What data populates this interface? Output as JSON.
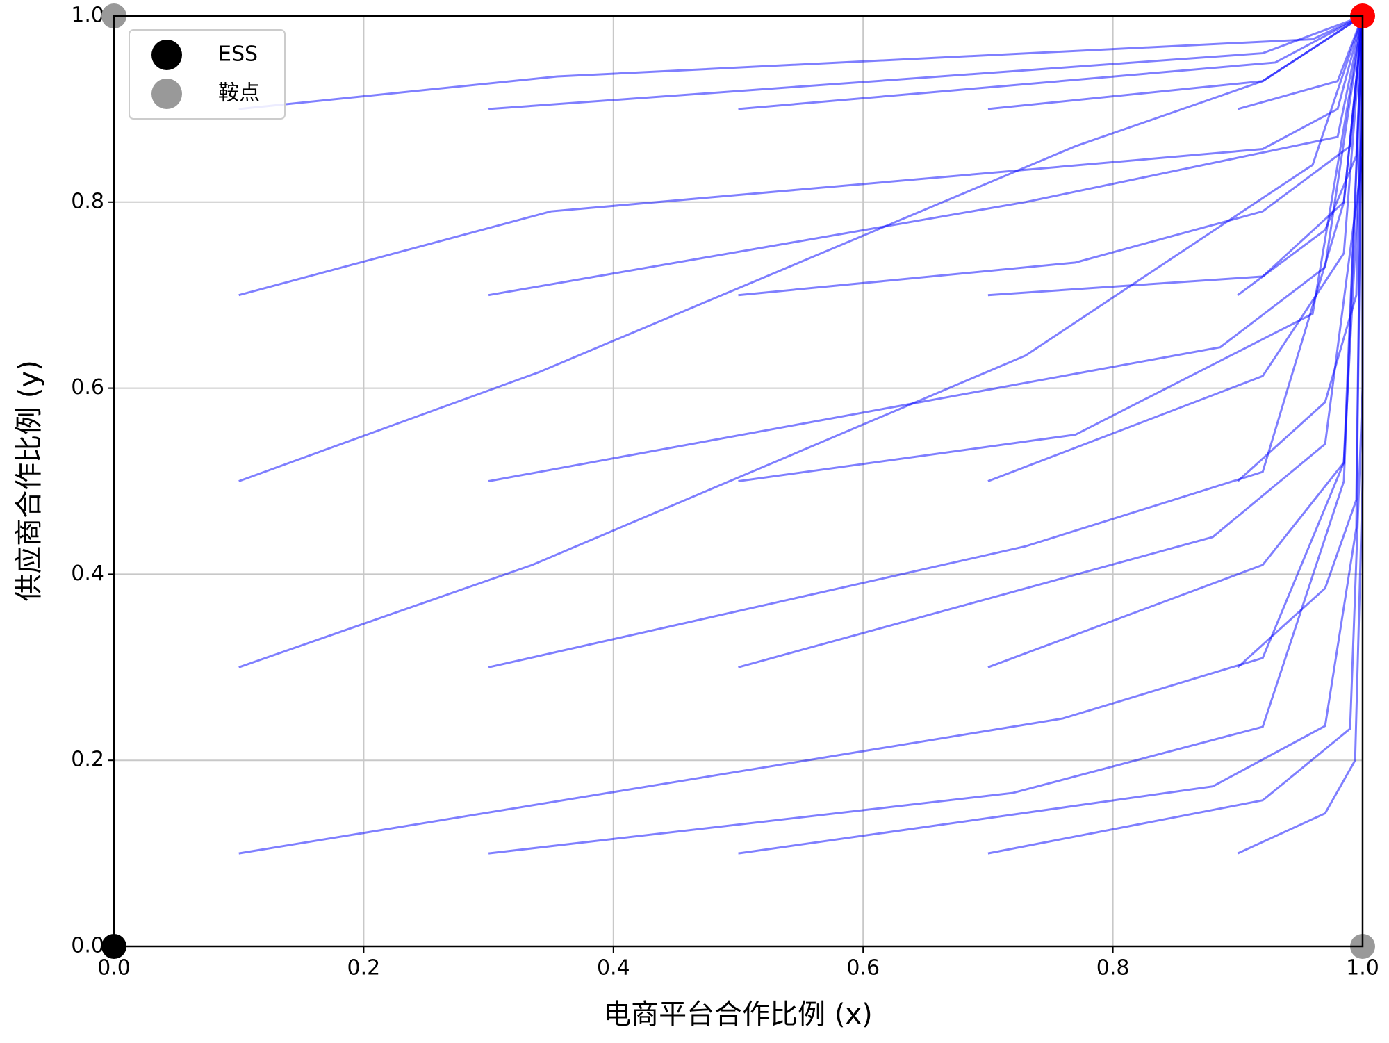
{
  "chart_data": {
    "type": "phase",
    "xlabel": "电商平台合作比例 (x)",
    "ylabel": "供应商合作比例 (y)",
    "xlim": [
      0,
      1
    ],
    "ylim": [
      0,
      1
    ],
    "xticks": [
      {
        "value": 0,
        "label": "0.0"
      },
      0.2,
      0.4,
      0.6,
      0.8,
      {
        "value": 1,
        "label": "1.0"
      }
    ],
    "yticks": [
      {
        "value": 0,
        "label": "0.0"
      },
      0.2,
      0.4,
      0.6,
      0.8,
      {
        "value": 1,
        "label": "1.0"
      }
    ],
    "grid": true,
    "legend": "upper left",
    "line_color": "#0000ff",
    "series": [
      {
        "x": [
          0.1,
          0.76,
          0.92,
          0.985,
          1
        ],
        "y": [
          0.1,
          0.245,
          0.31,
          0.52,
          1
        ]
      },
      {
        "x": [
          0.3,
          0.72,
          0.92,
          0.985,
          1
        ],
        "y": [
          0.1,
          0.165,
          0.236,
          0.5,
          1
        ]
      },
      {
        "x": [
          0.5,
          0.88,
          0.97,
          0.995,
          1
        ],
        "y": [
          0.1,
          0.172,
          0.237,
          0.45,
          1
        ]
      },
      {
        "x": [
          0.7,
          0.92,
          0.99,
          1,
          1
        ],
        "y": [
          0.1,
          0.157,
          0.234,
          0.6,
          1
        ]
      },
      {
        "x": [
          0.9,
          0.97,
          0.994,
          1,
          1
        ],
        "y": [
          0.1,
          0.143,
          0.2,
          0.5,
          1
        ]
      },
      {
        "x": [
          0.1,
          0.335,
          0.73,
          0.96,
          1
        ],
        "y": [
          0.3,
          0.41,
          0.635,
          0.84,
          1
        ]
      },
      {
        "x": [
          0.3,
          0.73,
          0.92,
          0.985,
          1
        ],
        "y": [
          0.3,
          0.43,
          0.51,
          0.8,
          1
        ]
      },
      {
        "x": [
          0.5,
          0.88,
          0.97,
          1,
          1
        ],
        "y": [
          0.3,
          0.44,
          0.54,
          0.85,
          1
        ]
      },
      {
        "x": [
          0.7,
          0.92,
          0.985,
          1,
          1
        ],
        "y": [
          0.3,
          0.41,
          0.52,
          0.9,
          1
        ]
      },
      {
        "x": [
          0.9,
          0.97,
          0.995,
          1
        ],
        "y": [
          0.3,
          0.385,
          0.48,
          1
        ]
      },
      {
        "x": [
          0.1,
          0.34,
          0.77,
          0.92,
          1
        ],
        "y": [
          0.5,
          0.617,
          0.86,
          0.93,
          1
        ]
      },
      {
        "x": [
          0.3,
          0.886,
          0.97,
          1
        ],
        "y": [
          0.5,
          0.644,
          0.73,
          1
        ]
      },
      {
        "x": [
          0.5,
          0.77,
          0.96,
          1
        ],
        "y": [
          0.5,
          0.55,
          0.68,
          1
        ]
      },
      {
        "x": [
          0.7,
          0.92,
          0.985,
          1
        ],
        "y": [
          0.5,
          0.613,
          0.745,
          1
        ]
      },
      {
        "x": [
          0.9,
          0.97,
          0.995,
          1
        ],
        "y": [
          0.5,
          0.585,
          0.7,
          1
        ]
      },
      {
        "x": [
          0.1,
          0.35,
          0.92,
          0.98,
          1
        ],
        "y": [
          0.7,
          0.79,
          0.857,
          0.9,
          1
        ]
      },
      {
        "x": [
          0.3,
          0.73,
          0.98,
          1
        ],
        "y": [
          0.7,
          0.8,
          0.87,
          1
        ]
      },
      {
        "x": [
          0.5,
          0.77,
          0.92,
          0.99,
          1
        ],
        "y": [
          0.7,
          0.735,
          0.79,
          0.86,
          1
        ]
      },
      {
        "x": [
          0.7,
          0.92,
          0.985,
          1
        ],
        "y": [
          0.7,
          0.72,
          0.8,
          1
        ]
      },
      {
        "x": [
          0.9,
          0.97,
          0.995,
          1
        ],
        "y": [
          0.7,
          0.77,
          0.85,
          1
        ]
      },
      {
        "x": [
          0.1,
          0.355,
          0.96,
          1
        ],
        "y": [
          0.9,
          0.935,
          0.975,
          1
        ]
      },
      {
        "x": [
          0.3,
          0.92,
          1
        ],
        "y": [
          0.9,
          0.96,
          1
        ]
      },
      {
        "x": [
          0.5,
          0.93,
          1
        ],
        "y": [
          0.9,
          0.95,
          1
        ]
      },
      {
        "x": [
          0.7,
          0.92,
          1
        ],
        "y": [
          0.9,
          0.93,
          1
        ]
      },
      {
        "x": [
          0.9,
          0.98,
          1
        ],
        "y": [
          0.9,
          0.93,
          1
        ]
      }
    ],
    "points": [
      {
        "name": "ESS",
        "color": "#000000",
        "x": [
          0
        ],
        "y": [
          0
        ]
      },
      {
        "name": "鞍点",
        "color": "#999999",
        "x": [
          0,
          1
        ],
        "y": [
          1,
          0
        ]
      },
      {
        "color": "#ff0000",
        "x": [
          1
        ],
        "y": [
          1
        ]
      }
    ]
  }
}
